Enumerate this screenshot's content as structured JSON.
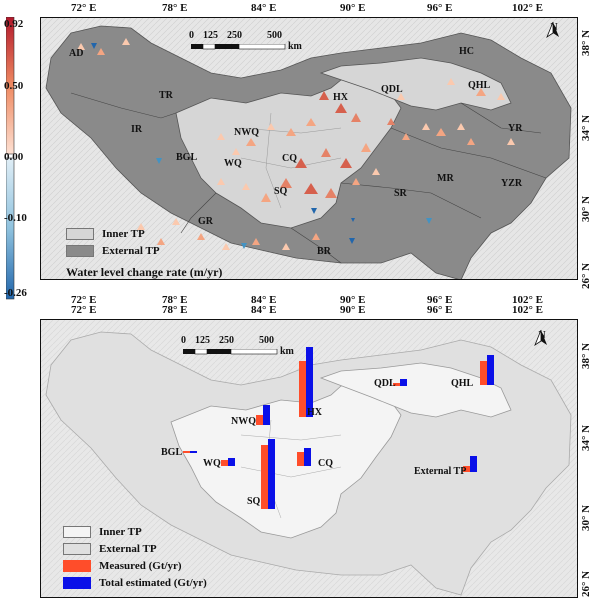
{
  "top_map": {
    "lon_ticks_top": [
      "72° E",
      "78° E",
      "84° E",
      "90° E",
      "96° E",
      "102° E"
    ],
    "lon_ticks_bottom": [
      "72° E",
      "78° E",
      "84° E",
      "90° E",
      "96° E",
      "102° E"
    ],
    "lat_ticks": [
      "38° N",
      "34° N",
      "30° N",
      "26° N"
    ],
    "regions": {
      "ad": "AD",
      "tr": "TR",
      "ir": "IR",
      "bgl": "BGL",
      "nwq": "NWQ",
      "wq": "WQ",
      "cq": "CQ",
      "sq": "SQ",
      "gr": "GR",
      "br": "BR",
      "sr": "SR",
      "mr": "MR",
      "yzr": "YZR",
      "yr": "YR",
      "hx": "HX",
      "qdl": "QDL",
      "hc": "HC",
      "qhl": "QHL"
    },
    "scalebar": {
      "labels": [
        "0",
        "125",
        "250",
        "500"
      ],
      "unit": "km"
    },
    "north": "N",
    "legend": {
      "inner": "Inner TP",
      "external": "External TP",
      "title": "Water level change rate (m/yr)"
    },
    "colorbar_labels": [
      "0.92",
      "0.50",
      "0.00",
      "-0.10",
      "-0.26"
    ]
  },
  "bottom_map": {
    "lon_ticks_top": [
      "72° E",
      "78° E",
      "84° E",
      "90° E",
      "96° E",
      "102° E"
    ],
    "lat_ticks": [
      "38° N",
      "34° N",
      "30° N",
      "26° N"
    ],
    "scalebar": {
      "labels": [
        "0",
        "125",
        "250",
        "500"
      ],
      "unit": "km"
    },
    "north": "N",
    "bars": [
      {
        "region": "QHL",
        "measured": 1.2,
        "estimated": 1.5
      },
      {
        "region": "HX",
        "measured": 2.8,
        "estimated": 3.5
      },
      {
        "region": "QDL",
        "measured": 0.15,
        "estimated": 0.35
      },
      {
        "region": "NWQ",
        "measured": 0.5,
        "estimated": 1.0
      },
      {
        "region": "BGL",
        "measured": 0.08,
        "estimated": 0.08
      },
      {
        "region": "WQ",
        "measured": 0.3,
        "estimated": 0.4
      },
      {
        "region": "CQ",
        "measured": 0.7,
        "estimated": 0.9
      },
      {
        "region": "SQ",
        "measured": 3.2,
        "estimated": 3.5
      },
      {
        "region": "External TP",
        "measured": 0.3,
        "estimated": 0.8
      }
    ],
    "legend": {
      "inner": "Inner TP",
      "external": "External TP",
      "measured": "Measured (Gt/yr)",
      "estimated": "Total estimated (Gt/yr)"
    },
    "colors": {
      "measured": "#ff4d2a",
      "estimated": "#0a10e8"
    }
  }
}
